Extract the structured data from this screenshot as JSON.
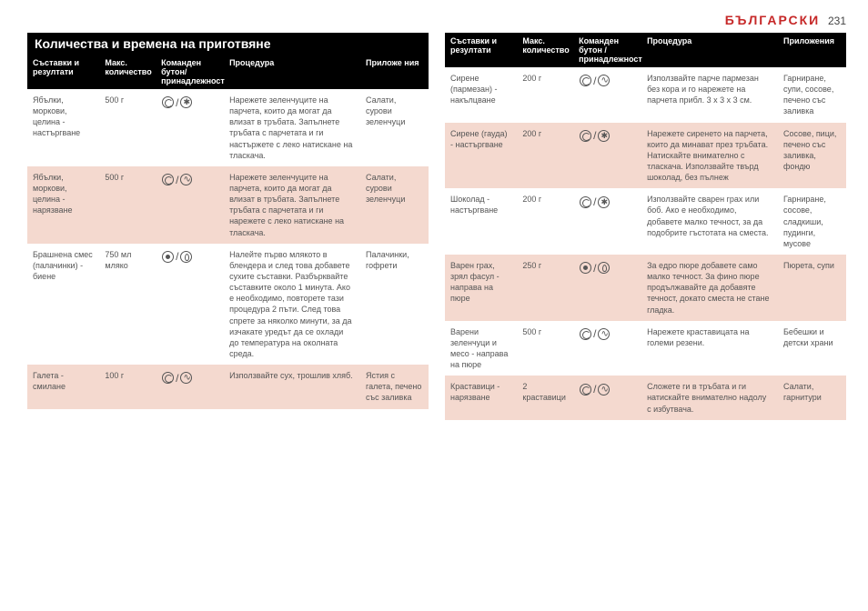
{
  "header": {
    "language": "БЪЛГАРСКИ",
    "page_number": "231"
  },
  "title": "Количества и времена на приготвяне",
  "columns": {
    "ingredients": "Съставки и резултати",
    "quantity": "Макс. количество",
    "button": "Команден бутон/ принадлежност",
    "button2": "Команден бутон / принадлежност",
    "procedure": "Процедура",
    "applications": "Приложения",
    "applications_short": "Приложе ния"
  },
  "left": [
    {
      "ing": "Ябълки, моркови, целина - настъргване",
      "qty": "500 г",
      "icons": [
        "spiral",
        "cross"
      ],
      "proc": "Нарежете зеленчуците на парчета, които да могат да влизат в тръбата. Запълнете тръбата с парчетата и ги настържете с леко натискане на тласкача.",
      "app": "Салати, сурови зеленчуци"
    },
    {
      "ing": "Ябълки, моркови, целина - нарязване",
      "qty": "500 г",
      "icons": [
        "spiral",
        "wave"
      ],
      "proc": "Нарежете зеленчуците на парчета, които да могат да влизат в тръбата. Запълнете тръбата с парчетата и ги нарежете с леко натискане на тласкача.",
      "app": "Салати, сурови зеленчуци"
    },
    {
      "ing": "Брашнена смес (палачинки) - биене",
      "qty": "750 мл мляко",
      "icons": [
        "pulse",
        "drop"
      ],
      "proc": "Налейте първо млякото в блендера и след това добавете сухите съставки. Разбърквайте съставките около 1 минута. Ако е необходимо, повторете тази процедура 2 пъти. След това спрете за няколко минути, за да изчакате уредът да се охлади до температура на околната среда.",
      "app": "Палачинки, гофрети"
    },
    {
      "ing": "Галета - смилане",
      "qty": "100 г",
      "icons": [
        "spiral",
        "wave"
      ],
      "proc": "Използвайте сух, трошлив хляб.",
      "app": "Ястия с галета, печено със заливка"
    }
  ],
  "right": [
    {
      "ing": "Сирене (пармезан) - накълцване",
      "qty": "200 г",
      "icons": [
        "spiral",
        "wave"
      ],
      "proc": "Използвайте парче пармезан без кора и го нарежете на парчета прибл. 3 x 3 x 3 см.",
      "app": "Гарниране, супи, сосове, печено със заливка"
    },
    {
      "ing": "Сирене (гауда) - настъргване",
      "qty": "200 г",
      "icons": [
        "spiral",
        "cross"
      ],
      "proc": "Нарежете сиренето на парчета, които да минават през тръбата. Натискайте внимателно с тласкача. Използвайте твърд шоколад, без пълнеж",
      "app": "Сосове, пици, печено със заливка, фондю"
    },
    {
      "ing": "Шоколад - настъргване",
      "qty": "200 г",
      "icons": [
        "spiral",
        "cross"
      ],
      "proc": "Използвайте сварен грах или боб. Ако е необходимо, добавете малко течност, за да подобрите гъстотата на сместа.",
      "app": "Гарниране, сосове, сладкиши, пудинги, мусове"
    },
    {
      "ing": "Варен грах, зрял фасул - направа на пюре",
      "qty": "250 г",
      "icons": [
        "pulse",
        "drop"
      ],
      "proc": "За едро пюре добавете само малко течност. За фино пюре продължавайте да добавяте течност, докато сместа не стане гладка.",
      "app": "Пюрета, супи"
    },
    {
      "ing": "Варени зеленчуци и месо - направа на пюре",
      "qty": "500 г",
      "icons": [
        "spiral",
        "wave"
      ],
      "proc": "Нарежете краставицата на големи резени.",
      "app": "Бебешки и детски храни"
    },
    {
      "ing": "Краставици - нарязване",
      "qty": "2 краставици",
      "icons": [
        "spiral",
        "wave"
      ],
      "proc": "Сложете ги в тръбата и ги натискайте внимателно надолу с избутвача.",
      "app": "Салати, гарнитури"
    }
  ]
}
